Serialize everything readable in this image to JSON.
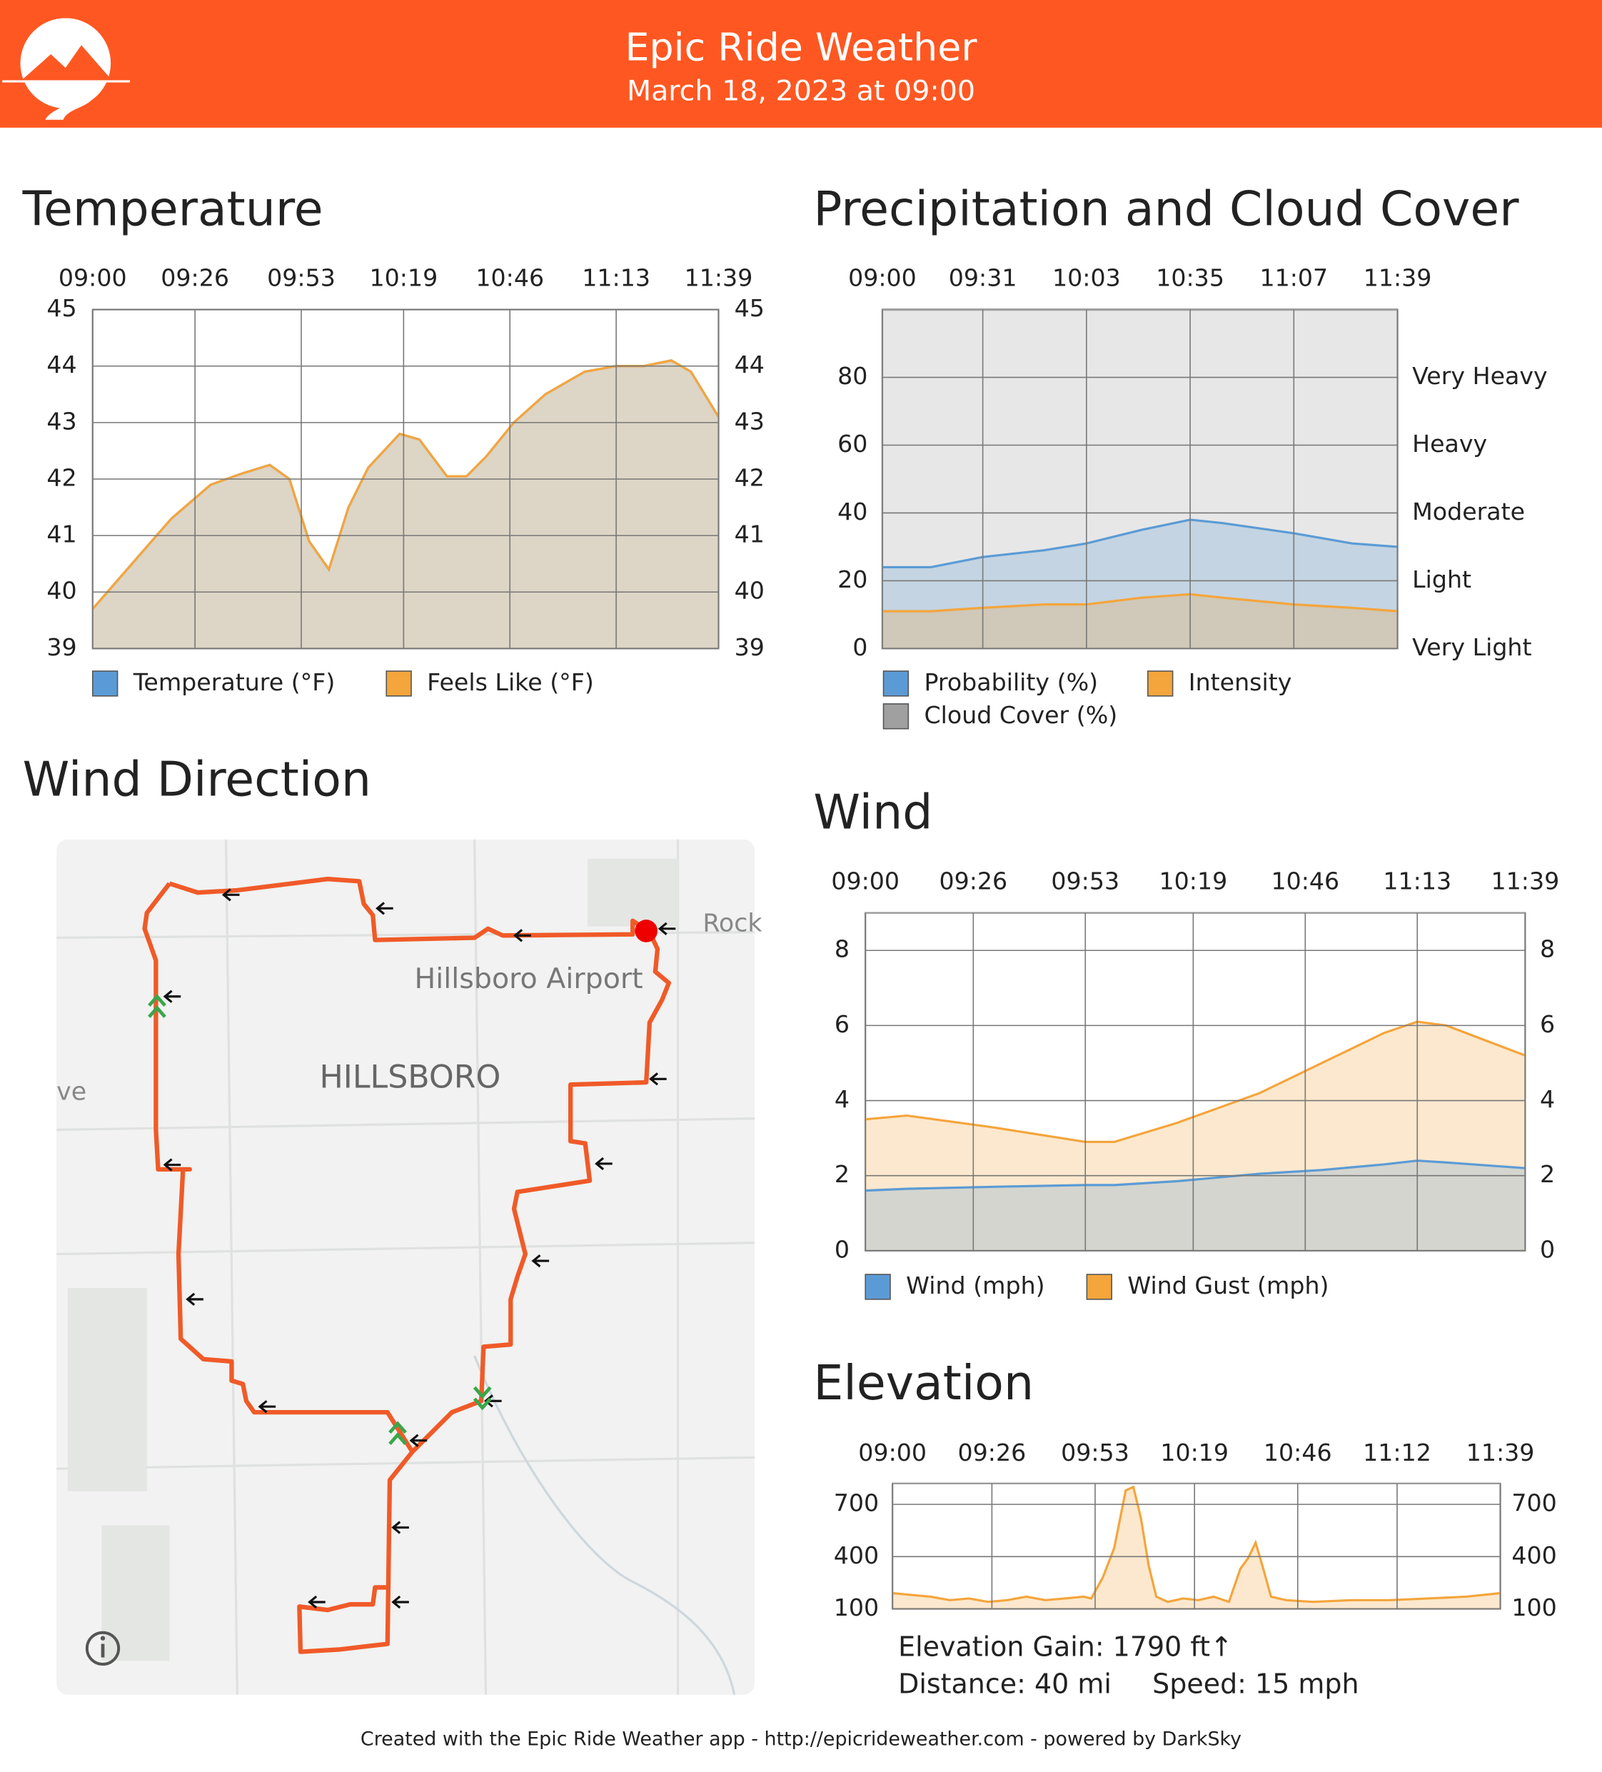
{
  "header": {
    "title": "Epic Ride Weather",
    "subtitle": "March 18, 2023 at 09:00"
  },
  "map": {
    "title": "Wind Direction",
    "labels": [
      "Hillsboro Airport",
      "HILLSBORO",
      "Rock",
      "ve"
    ]
  },
  "elevation_stats": {
    "gain": "Elevation Gain: 1790 ft↑",
    "distance": "Distance: 40 mi",
    "speed": "Speed: 15 mph"
  },
  "footer": "Created with the Epic Ride Weather app - http://epicrideweather.com - powered by DarkSky",
  "chart_data": [
    {
      "type": "area",
      "title": "Temperature",
      "grid": true,
      "xlim": [
        0,
        159
      ],
      "xticks": [
        {
          "value": 0,
          "label": "09:00"
        },
        {
          "value": 26,
          "label": "09:26"
        },
        {
          "value": 53,
          "label": "09:53"
        },
        {
          "value": 79,
          "label": "10:19"
        },
        {
          "value": 106,
          "label": "10:46"
        },
        {
          "value": 133,
          "label": "11:13"
        },
        {
          "value": 159,
          "label": "11:39"
        }
      ],
      "ylim": [
        39,
        45
      ],
      "yticks": [
        39,
        40,
        41,
        42,
        43,
        44,
        45
      ],
      "y2lim": [
        39,
        45
      ],
      "y2ticks": [
        39,
        40,
        41,
        42,
        43,
        44,
        45
      ],
      "x": [
        0,
        10,
        20,
        30,
        38,
        45,
        50,
        55,
        60,
        65,
        70,
        78,
        83,
        90,
        95,
        100,
        107,
        115,
        125,
        133,
        140,
        147,
        152,
        159
      ],
      "series": [
        {
          "name": "Temperature (°F)",
          "color": "#5b9bd5",
          "values": [
            39.7,
            40.5,
            41.3,
            41.9,
            42.1,
            42.25,
            42.0,
            40.9,
            40.4,
            41.5,
            42.2,
            42.8,
            42.7,
            42.05,
            42.05,
            42.4,
            43.0,
            43.5,
            43.9,
            44.0,
            44.0,
            44.1,
            43.9,
            43.1
          ]
        },
        {
          "name": "Feels Like (°F)",
          "color": "#f4a53c",
          "values": [
            39.7,
            40.5,
            41.3,
            41.9,
            42.1,
            42.25,
            42.0,
            40.9,
            40.4,
            41.5,
            42.2,
            42.8,
            42.7,
            42.05,
            42.05,
            42.4,
            43.0,
            43.5,
            43.9,
            44.0,
            44.0,
            44.1,
            43.9,
            43.1
          ]
        }
      ]
    },
    {
      "type": "area",
      "title": "Precipitation and Cloud Cover",
      "grid": true,
      "xlim": [
        0,
        159
      ],
      "xticks": [
        {
          "value": 0,
          "label": "09:00"
        },
        {
          "value": 31,
          "label": "09:31"
        },
        {
          "value": 63,
          "label": "10:03"
        },
        {
          "value": 95,
          "label": "10:35"
        },
        {
          "value": 127,
          "label": "11:07"
        },
        {
          "value": 159,
          "label": "11:39"
        }
      ],
      "ylim": [
        0,
        100
      ],
      "yticks": [
        0,
        20,
        40,
        60,
        80
      ],
      "y2lim": [
        0,
        100
      ],
      "y2ticks": [
        {
          "value": 0,
          "label": "Very Light"
        },
        {
          "value": 20,
          "label": "Light"
        },
        {
          "value": 40,
          "label": "Moderate"
        },
        {
          "value": 60,
          "label": "Heavy"
        },
        {
          "value": 80,
          "label": "Very Heavy"
        }
      ],
      "x": [
        0,
        15,
        31,
        50,
        63,
        80,
        95,
        105,
        127,
        145,
        159
      ],
      "series": [
        {
          "name": "Cloud Cover (%)",
          "color": "#a0a0a0",
          "values": [
            100,
            100,
            100,
            100,
            100,
            100,
            100,
            100,
            100,
            100,
            100
          ]
        },
        {
          "name": "Probability (%)",
          "color": "#5b9bd5",
          "values": [
            24,
            24,
            27,
            29,
            31,
            35,
            38,
            37,
            34,
            31,
            30
          ]
        },
        {
          "name": "Intensity",
          "color": "#f4a53c",
          "axis": "y2",
          "values": [
            11,
            11,
            12,
            13,
            13,
            15,
            16,
            15,
            13,
            12,
            11
          ]
        }
      ]
    },
    {
      "type": "area",
      "title": "Wind",
      "grid": true,
      "xlim": [
        0,
        159
      ],
      "xticks": [
        {
          "value": 0,
          "label": "09:00"
        },
        {
          "value": 26,
          "label": "09:26"
        },
        {
          "value": 53,
          "label": "09:53"
        },
        {
          "value": 79,
          "label": "10:19"
        },
        {
          "value": 106,
          "label": "10:46"
        },
        {
          "value": 133,
          "label": "11:13"
        },
        {
          "value": 159,
          "label": "11:39"
        }
      ],
      "ylim": [
        0,
        9
      ],
      "yticks": [
        0,
        2,
        4,
        6,
        8
      ],
      "y2lim": [
        0,
        9
      ],
      "y2ticks": [
        0,
        2,
        4,
        6,
        8
      ],
      "x": [
        0,
        10,
        30,
        53,
        60,
        75,
        95,
        110,
        125,
        133,
        140,
        159
      ],
      "series": [
        {
          "name": "Wind Gust (mph)",
          "color": "#f4a53c",
          "values": [
            3.5,
            3.6,
            3.3,
            2.9,
            2.9,
            3.4,
            4.2,
            5.0,
            5.8,
            6.1,
            6.0,
            5.2
          ]
        },
        {
          "name": "Wind (mph)",
          "color": "#5b9bd5",
          "values": [
            1.6,
            1.65,
            1.7,
            1.75,
            1.75,
            1.85,
            2.05,
            2.15,
            2.3,
            2.4,
            2.35,
            2.2
          ]
        }
      ]
    },
    {
      "type": "area",
      "title": "Elevation",
      "grid": true,
      "color": "#f4a53c",
      "xlim": [
        0,
        159
      ],
      "xticks": [
        {
          "value": 0,
          "label": "09:00"
        },
        {
          "value": 26,
          "label": "09:26"
        },
        {
          "value": 53,
          "label": "09:53"
        },
        {
          "value": 79,
          "label": "10:19"
        },
        {
          "value": 106,
          "label": "10:46"
        },
        {
          "value": 132,
          "label": "11:12"
        },
        {
          "value": 159,
          "label": "11:39"
        }
      ],
      "ylim": [
        100,
        820
      ],
      "yticks": [
        100,
        400,
        700
      ],
      "y2lim": [
        100,
        820
      ],
      "y2ticks": [
        100,
        400,
        700
      ],
      "x": [
        0,
        5,
        10,
        15,
        20,
        25,
        30,
        35,
        40,
        45,
        50,
        52,
        55,
        58,
        61,
        63,
        65,
        67,
        69,
        72,
        76,
        80,
        84,
        88,
        91,
        93,
        95,
        97,
        99,
        103,
        110,
        120,
        130,
        140,
        150,
        159
      ],
      "values": [
        190,
        180,
        170,
        150,
        160,
        140,
        150,
        170,
        150,
        160,
        170,
        160,
        280,
        450,
        780,
        800,
        620,
        350,
        170,
        140,
        160,
        150,
        170,
        140,
        330,
        390,
        480,
        330,
        170,
        150,
        140,
        150,
        150,
        160,
        170,
        190
      ]
    }
  ]
}
